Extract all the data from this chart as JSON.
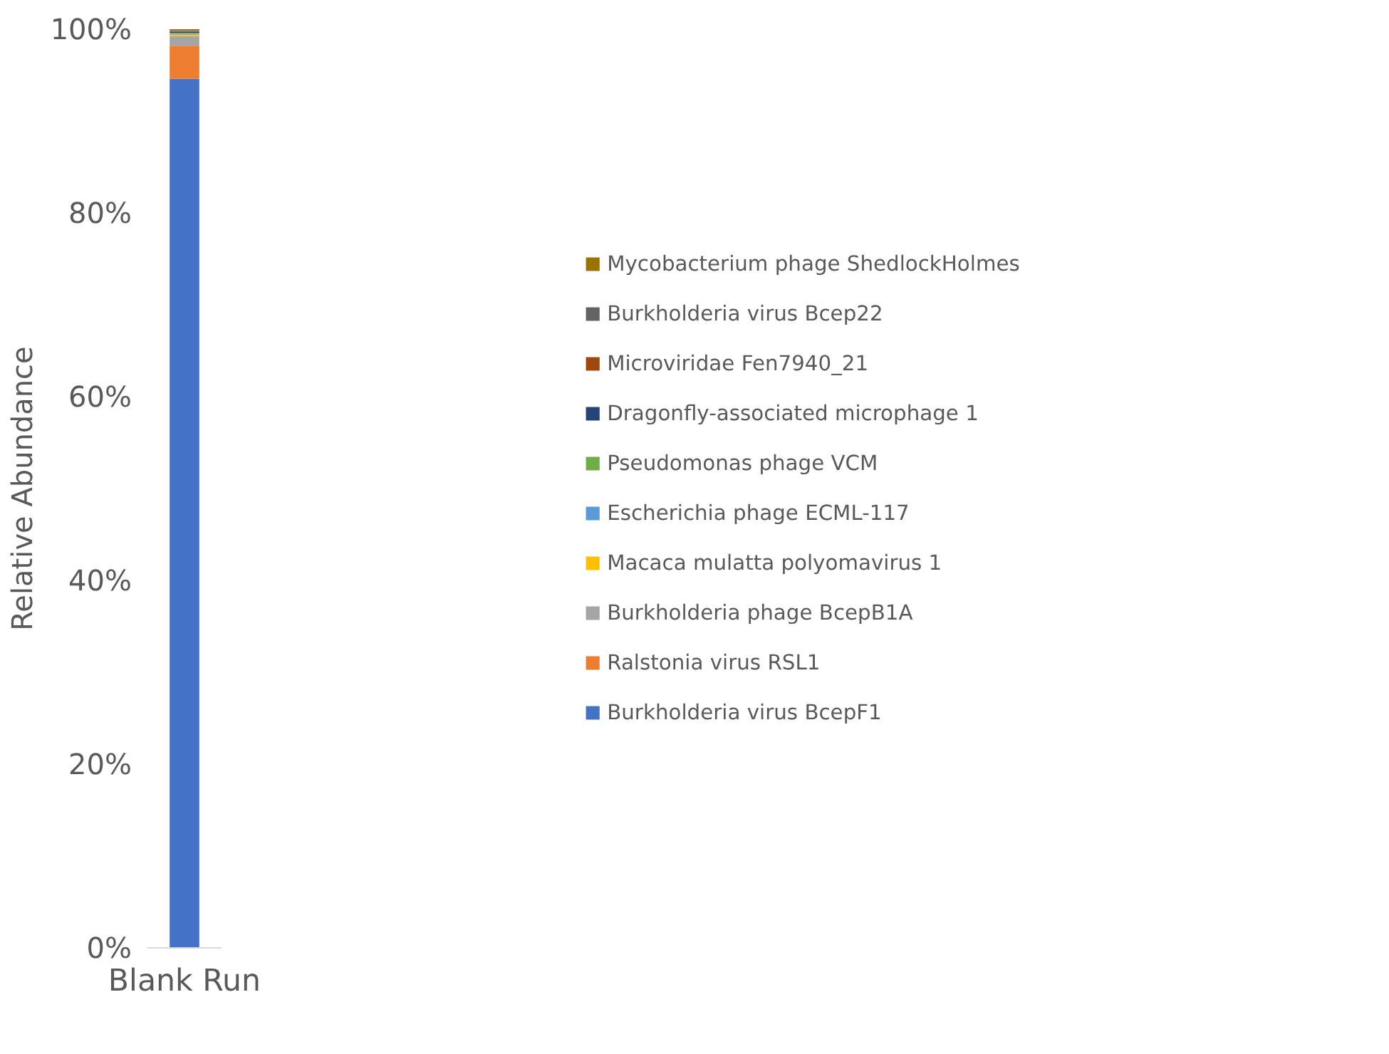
{
  "chart_data": {
    "type": "bar",
    "stacked": true,
    "ylabel": "Relative Abundance",
    "categories": [
      "Blank Run"
    ],
    "ylim": [
      0,
      100
    ],
    "yticks": [
      {
        "value": 0,
        "label": "0%"
      },
      {
        "value": 20,
        "label": "20%"
      },
      {
        "value": 40,
        "label": "40%"
      },
      {
        "value": 60,
        "label": "60%"
      },
      {
        "value": 80,
        "label": "80%"
      },
      {
        "value": 100,
        "label": "100%"
      }
    ],
    "grid": false,
    "legend": "right",
    "series": [
      {
        "name": "Burkholderia virus BcepF1",
        "color": "#4472c4",
        "values": [
          94.6
        ]
      },
      {
        "name": "Ralstonia virus RSL1",
        "color": "#ed7d31",
        "values": [
          3.6
        ]
      },
      {
        "name": "Burkholderia phage BcepB1A",
        "color": "#a5a5a5",
        "values": [
          1.05
        ]
      },
      {
        "name": "Macaca mulatta polyomavirus 1",
        "color": "#ffc000",
        "values": [
          0.15
        ]
      },
      {
        "name": "Escherichia phage ECML-117",
        "color": "#5b9bd5",
        "values": [
          0.1
        ]
      },
      {
        "name": "Pseudomonas phage VCM",
        "color": "#70ad47",
        "values": [
          0.1
        ]
      },
      {
        "name": "Dragonfly-associated microphage 1",
        "color": "#264478",
        "values": [
          0.1
        ]
      },
      {
        "name": "Microviridae Fen7940_21",
        "color": "#9e480e",
        "values": [
          0.1
        ]
      },
      {
        "name": "Burkholderia virus Bcep22",
        "color": "#636363",
        "values": [
          0.1
        ]
      },
      {
        "name": "Mycobacterium phage ShedlockHolmes",
        "color": "#997300",
        "values": [
          0.1
        ]
      }
    ]
  }
}
